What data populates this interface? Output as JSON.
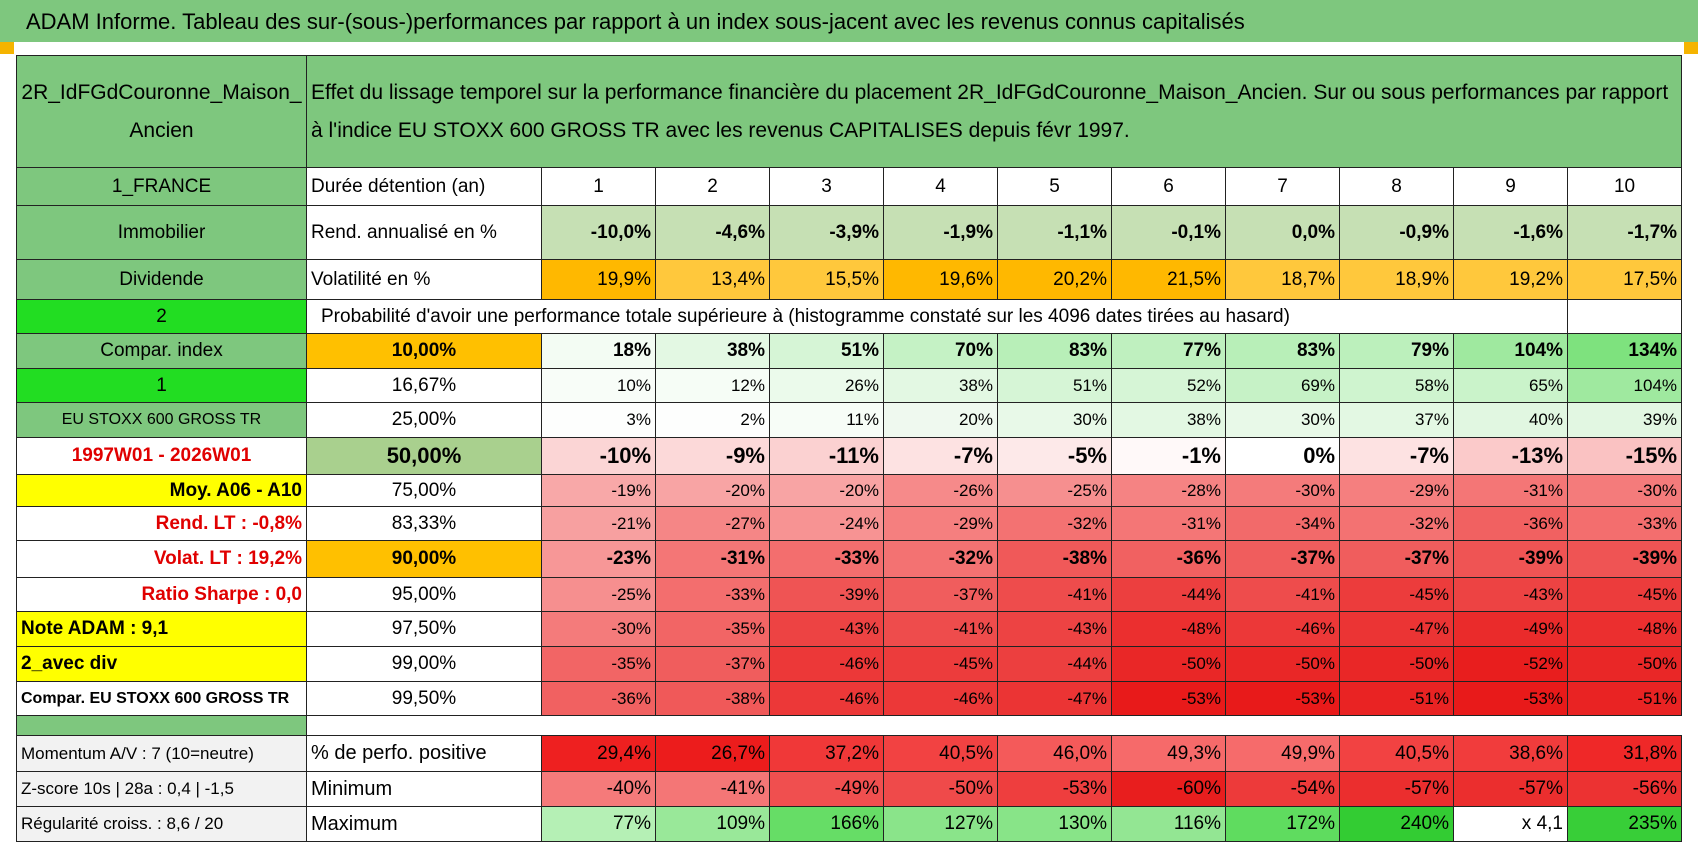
{
  "header": {
    "title": "ADAM Informe. Tableau des sur-(sous-)performances par rapport à un index sous-jacent avec les revenus connus capitalisés"
  },
  "table": {
    "corner": "2R_IdFGdCouronne_Maison_Ancien",
    "description": "Effet du lissage temporel sur la performance financière du placement 2R_IdFGdCouronne_Maison_Ancien. Sur ou sous performances par rapport à l'indice EU STOXX 600 GROSS TR avec les revenus CAPITALISES depuis févr 1997.",
    "left_labels": [
      "1_FRANCE",
      "Immobilier",
      "Dividende",
      "2",
      "Compar. index",
      "1",
      "EU STOXX 600 GROSS TR",
      "1997W01 - 2026W01",
      "Moy. A06 - A10",
      "Rend. LT :   -0,8%",
      "Volat. LT :   19,2%",
      "Ratio Sharpe :    0,0",
      "Note ADAM : 9,1",
      "2_avec div",
      "Compar. EU STOXX 600 GROSS TR"
    ],
    "duration_label": "Durée détention (an)",
    "durations": [
      1,
      2,
      3,
      4,
      5,
      6,
      7,
      8,
      9,
      10
    ],
    "rend_label": "Rend. annualisé en %",
    "rend_values": [
      "-10,0%",
      "-4,6%",
      "-3,9%",
      "-1,9%",
      "-1,1%",
      "-0,1%",
      "0,0%",
      "-0,9%",
      "-1,6%",
      "-1,7%"
    ],
    "rend_color": "#c6e0b4",
    "vol_label": "Volatilité en %",
    "vol_values": [
      "19,9%",
      "13,4%",
      "15,5%",
      "19,6%",
      "20,2%",
      "21,5%",
      "18,7%",
      "18,9%",
      "19,2%",
      "17,5%"
    ],
    "vol_colors": [
      "#ffb800",
      "#ffc83c",
      "#ffc83c",
      "#ffb800",
      "#ffb800",
      "#ffb800",
      "#ffc83c",
      "#ffc83c",
      "#ffc83c",
      "#ffc83c"
    ],
    "prob_title": "Probabilité d'avoir une performance totale supérieure à (histogramme constaté sur les 4096 dates tirées au hasard)",
    "prob_rows": [
      {
        "threshold": "10,00%",
        "threshold_color": "#ffc000",
        "values": [
          "18%",
          "38%",
          "51%",
          "70%",
          "83%",
          "77%",
          "83%",
          "79%",
          "104%",
          "134%"
        ],
        "colors": [
          "#f3fcf3",
          "#e3f8e3",
          "#d6f5d6",
          "#c5f2c5",
          "#b8efb8",
          "#bff0bf",
          "#b8efb8",
          "#bcf0bc",
          "#9fe99f",
          "#7ee27e"
        ]
      },
      {
        "threshold": "16,67%",
        "threshold_color": "#ffffff",
        "values": [
          "10%",
          "12%",
          "26%",
          "38%",
          "51%",
          "52%",
          "69%",
          "58%",
          "65%",
          "104%"
        ],
        "colors": [
          "#f8fdf8",
          "#f6fdf6",
          "#ebfaeb",
          "#e3f8e3",
          "#d6f5d6",
          "#d6f5d6",
          "#c6f2c6",
          "#cff4cf",
          "#caf3ca",
          "#9fe99f"
        ]
      },
      {
        "threshold": "25,00%",
        "threshold_color": "#ffffff",
        "values": [
          "3%",
          "2%",
          "11%",
          "20%",
          "30%",
          "38%",
          "30%",
          "37%",
          "40%",
          "39%"
        ],
        "colors": [
          "#fdfefd",
          "#fdfefd",
          "#f7fdf7",
          "#eff9ef",
          "#e8f9e8",
          "#e3f8e3",
          "#e8f9e8",
          "#e3f8e3",
          "#e1f7e1",
          "#e2f7e2"
        ]
      },
      {
        "threshold": "50,00%",
        "threshold_color": "#a9d08e",
        "values": [
          "-10%",
          "-9%",
          "-11%",
          "-7%",
          "-5%",
          "-1%",
          "0%",
          "-7%",
          "-13%",
          "-15%"
        ],
        "colors": [
          "#fbd5d5",
          "#fcd9d9",
          "#fbd1d1",
          "#fde2e2",
          "#fde9e9",
          "#fff9f9",
          "#ffffff",
          "#fde2e2",
          "#fbcaca",
          "#fac2c2"
        ]
      },
      {
        "threshold": "75,00%",
        "threshold_color": "#ffffff",
        "values": [
          "-19%",
          "-20%",
          "-20%",
          "-26%",
          "-25%",
          "-28%",
          "-30%",
          "-29%",
          "-31%",
          "-30%"
        ],
        "colors": [
          "#f8a8a8",
          "#f8a4a4",
          "#f8a4a4",
          "#f68a8a",
          "#f68f8f",
          "#f58383",
          "#f47b7b",
          "#f57f7f",
          "#f47676",
          "#f47b7b"
        ]
      },
      {
        "threshold": "83,33%",
        "threshold_color": "#ffffff",
        "values": [
          "-21%",
          "-27%",
          "-24%",
          "-29%",
          "-32%",
          "-31%",
          "-34%",
          "-32%",
          "-36%",
          "-33%"
        ],
        "colors": [
          "#f7a0a0",
          "#f58686",
          "#f79393",
          "#f57f7f",
          "#f37272",
          "#f47676",
          "#f26a6a",
          "#f37272",
          "#f16161",
          "#f36e6e"
        ]
      },
      {
        "threshold": "90,00%",
        "threshold_color": "#ffc000",
        "values": [
          "-23%",
          "-31%",
          "-33%",
          "-32%",
          "-38%",
          "-36%",
          "-37%",
          "-37%",
          "-39%",
          "-39%"
        ],
        "colors": [
          "#f79797",
          "#f47676",
          "#f36e6e",
          "#f37272",
          "#f05959",
          "#f16161",
          "#f05d5d",
          "#f05d5d",
          "#ef5454",
          "#ef5454"
        ]
      },
      {
        "threshold": "95,00%",
        "threshold_color": "#ffffff",
        "values": [
          "-25%",
          "-33%",
          "-39%",
          "-37%",
          "-41%",
          "-44%",
          "-41%",
          "-45%",
          "-43%",
          "-45%"
        ],
        "colors": [
          "#f68f8f",
          "#f36e6e",
          "#ef5454",
          "#f05d5d",
          "#ee4c4c",
          "#ec3f3f",
          "#ee4c4c",
          "#ec3c3c",
          "#ed4343",
          "#ec3c3c"
        ]
      },
      {
        "threshold": "97,50%",
        "threshold_color": "#ffffff",
        "values": [
          "-30%",
          "-35%",
          "-43%",
          "-41%",
          "-43%",
          "-48%",
          "-46%",
          "-47%",
          "-49%",
          "-48%"
        ],
        "colors": [
          "#f47b7b",
          "#f26565",
          "#ed4343",
          "#ee4c4c",
          "#ed4343",
          "#eb2f2f",
          "#ec3838",
          "#eb3434",
          "#ea2b2b",
          "#eb2f2f"
        ]
      },
      {
        "threshold": "99,00%",
        "threshold_color": "#ffffff",
        "values": [
          "-35%",
          "-37%",
          "-46%",
          "-45%",
          "-44%",
          "-50%",
          "-50%",
          "-50%",
          "-52%",
          "-50%"
        ],
        "colors": [
          "#f26565",
          "#f05d5d",
          "#ec3838",
          "#ec3c3c",
          "#ec3f3f",
          "#e92727",
          "#e92727",
          "#e92727",
          "#e81e1e",
          "#e92727"
        ]
      },
      {
        "threshold": "99,50%",
        "threshold_color": "#ffffff",
        "values": [
          "-36%",
          "-38%",
          "-46%",
          "-46%",
          "-47%",
          "-53%",
          "-53%",
          "-51%",
          "-53%",
          "-51%"
        ],
        "colors": [
          "#f16161",
          "#f05959",
          "#ec3838",
          "#ec3838",
          "#eb3434",
          "#e81a1a",
          "#e81a1a",
          "#e92323",
          "#e81a1a",
          "#e92323"
        ]
      }
    ],
    "bottom_rows": [
      {
        "label": "Momentum A/V : 7 (10=neutre)",
        "metric": "% de perfo. positive",
        "values": [
          "29,4%",
          "26,7%",
          "37,2%",
          "40,5%",
          "46,0%",
          "49,3%",
          "49,9%",
          "40,5%",
          "38,6%",
          "31,8%"
        ],
        "colors": [
          "#ee2020",
          "#ec1c1c",
          "#f03838",
          "#f24242",
          "#f45a5a",
          "#f66a6a",
          "#f66b6b",
          "#f24242",
          "#f13c3c",
          "#ef2828"
        ]
      },
      {
        "label": "Z-score 10s | 28a : 0,4 | -1,5",
        "metric": "Minimum",
        "values": [
          "-40%",
          "-41%",
          "-49%",
          "-50%",
          "-53%",
          "-60%",
          "-54%",
          "-57%",
          "-57%",
          "-56%"
        ],
        "colors": [
          "#f57a7a",
          "#f47676",
          "#f04f4f",
          "#ef4a4a",
          "#ee3e3e",
          "#e81e1e",
          "#ed3a3a",
          "#eb2e2e",
          "#eb2e2e",
          "#ec3232"
        ]
      },
      {
        "label": "Régularité croiss. : 8,6 / 20",
        "metric": "Maximum",
        "values": [
          "77%",
          "109%",
          "166%",
          "127%",
          "130%",
          "116%",
          "172%",
          "240%",
          "x 4,1",
          "235%"
        ],
        "colors": [
          "#b5f0b5",
          "#99e899",
          "#66dd66",
          "#8ae48a",
          "#88e488",
          "#93e693",
          "#5fdc5f",
          "#33cc33",
          "#ffffff",
          "#38ce38"
        ]
      }
    ]
  }
}
